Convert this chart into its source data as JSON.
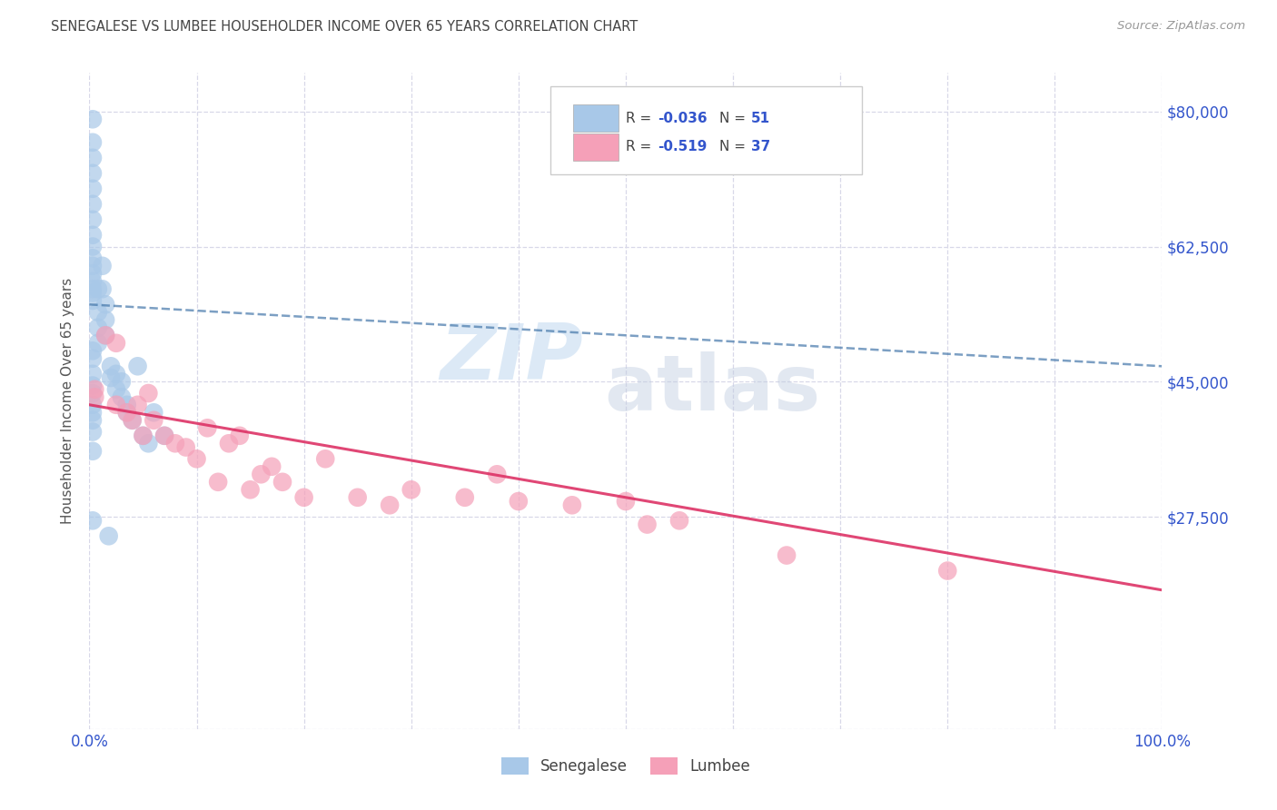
{
  "title": "SENEGALESE VS LUMBEE HOUSEHOLDER INCOME OVER 65 YEARS CORRELATION CHART",
  "source": "Source: ZipAtlas.com",
  "ylabel": "Householder Income Over 65 years",
  "y_ticks": [
    0,
    27500,
    45000,
    62500,
    80000
  ],
  "y_tick_labels": [
    "",
    "$27,500",
    "$45,000",
    "$62,500",
    "$80,000"
  ],
  "xlim": [
    0,
    100
  ],
  "ylim": [
    0,
    85000
  ],
  "R_sen": "-0.036",
  "N_sen": "51",
  "R_lum": "-0.519",
  "N_lum": "37",
  "bg_color": "#ffffff",
  "grid_color": "#d8d8e8",
  "senegalese_color": "#a8c8e8",
  "lumbee_color": "#f5a0b8",
  "senegalese_line_color": "#4477aa",
  "lumbee_line_color": "#dd3366",
  "title_color": "#444444",
  "tick_label_color": "#3355cc",
  "legend_value_color": "#3355cc",
  "sen_line_x": [
    0,
    100
  ],
  "sen_line_y": [
    55000,
    47000
  ],
  "lum_line_x": [
    0,
    100
  ],
  "lum_line_y": [
    42000,
    18000
  ],
  "senegalese_x": [
    0.3,
    0.3,
    0.3,
    0.3,
    0.3,
    0.3,
    0.3,
    0.3,
    0.3,
    0.3,
    0.3,
    0.3,
    0.3,
    0.3,
    0.3,
    0.3,
    0.8,
    0.8,
    0.8,
    0.8,
    1.2,
    1.2,
    1.5,
    1.5,
    1.5,
    2.0,
    2.0,
    2.5,
    2.5,
    3.0,
    3.0,
    3.5,
    3.5,
    4.0,
    4.5,
    5.0,
    5.5,
    6.0,
    7.0,
    0.3,
    0.3,
    0.3,
    0.3,
    0.3,
    0.3,
    0.3,
    0.3,
    0.3,
    0.3,
    0.3,
    1.8
  ],
  "senegalese_y": [
    79000,
    76000,
    74000,
    72000,
    70000,
    68000,
    66000,
    64000,
    62500,
    61000,
    60000,
    59000,
    58000,
    57000,
    56500,
    55500,
    57000,
    54000,
    52000,
    50000,
    60000,
    57000,
    55000,
    53000,
    51000,
    47000,
    45500,
    46000,
    44000,
    45000,
    43000,
    42000,
    41000,
    40000,
    47000,
    38000,
    37000,
    41000,
    38000,
    49000,
    48000,
    46000,
    44500,
    43500,
    42000,
    41000,
    40000,
    38500,
    36000,
    27000,
    25000
  ],
  "lumbee_x": [
    0.5,
    0.5,
    1.5,
    2.5,
    2.5,
    3.5,
    4.0,
    4.5,
    5.0,
    5.5,
    6.0,
    7.0,
    8.0,
    9.0,
    10.0,
    11.0,
    12.0,
    13.0,
    14.0,
    15.0,
    16.0,
    17.0,
    18.0,
    20.0,
    22.0,
    25.0,
    28.0,
    30.0,
    35.0,
    38.0,
    40.0,
    45.0,
    50.0,
    52.0,
    55.0,
    65.0,
    80.0
  ],
  "lumbee_y": [
    44000,
    43000,
    51000,
    50000,
    42000,
    41000,
    40000,
    42000,
    38000,
    43500,
    40000,
    38000,
    37000,
    36500,
    35000,
    39000,
    32000,
    37000,
    38000,
    31000,
    33000,
    34000,
    32000,
    30000,
    35000,
    30000,
    29000,
    31000,
    30000,
    33000,
    29500,
    29000,
    29500,
    26500,
    27000,
    22500,
    20500
  ]
}
